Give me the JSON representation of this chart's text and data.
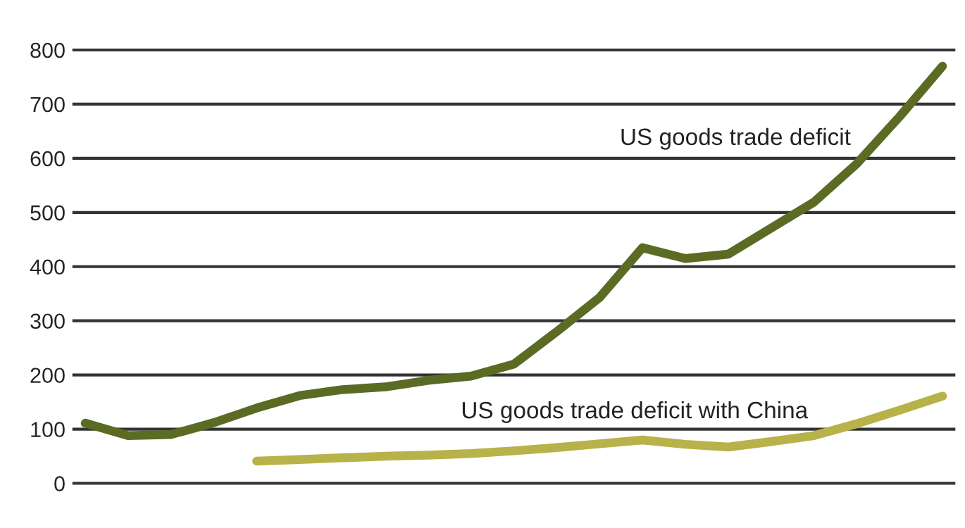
{
  "chart_data": {
    "type": "line",
    "categories": [
      null,
      null,
      null,
      null,
      null,
      null,
      null,
      null,
      null,
      null,
      null,
      null,
      null,
      null,
      null,
      null,
      null,
      null,
      null,
      null,
      null
    ],
    "series": [
      {
        "name": "US goods trade deficit",
        "color": "#5b6b24",
        "values": [
          111,
          88,
          90,
          112,
          139,
          162,
          173,
          178,
          190,
          198,
          220,
          280,
          343,
          435,
          415,
          423,
          471,
          519,
          590,
          677,
          770
        ]
      },
      {
        "name": "US goods trade deficit with China",
        "color": "#b8b24a",
        "values": [
          null,
          null,
          null,
          null,
          41,
          44,
          47,
          50,
          52,
          55,
          60,
          66,
          73,
          80,
          72,
          67,
          77,
          88,
          110,
          135,
          161
        ]
      }
    ],
    "ylim": [
      0,
      800
    ],
    "yticks": [
      0,
      100,
      200,
      300,
      400,
      500,
      600,
      700,
      800
    ],
    "grid": "y",
    "tick_labels": "y",
    "line_style": "solid",
    "marker": "none"
  }
}
